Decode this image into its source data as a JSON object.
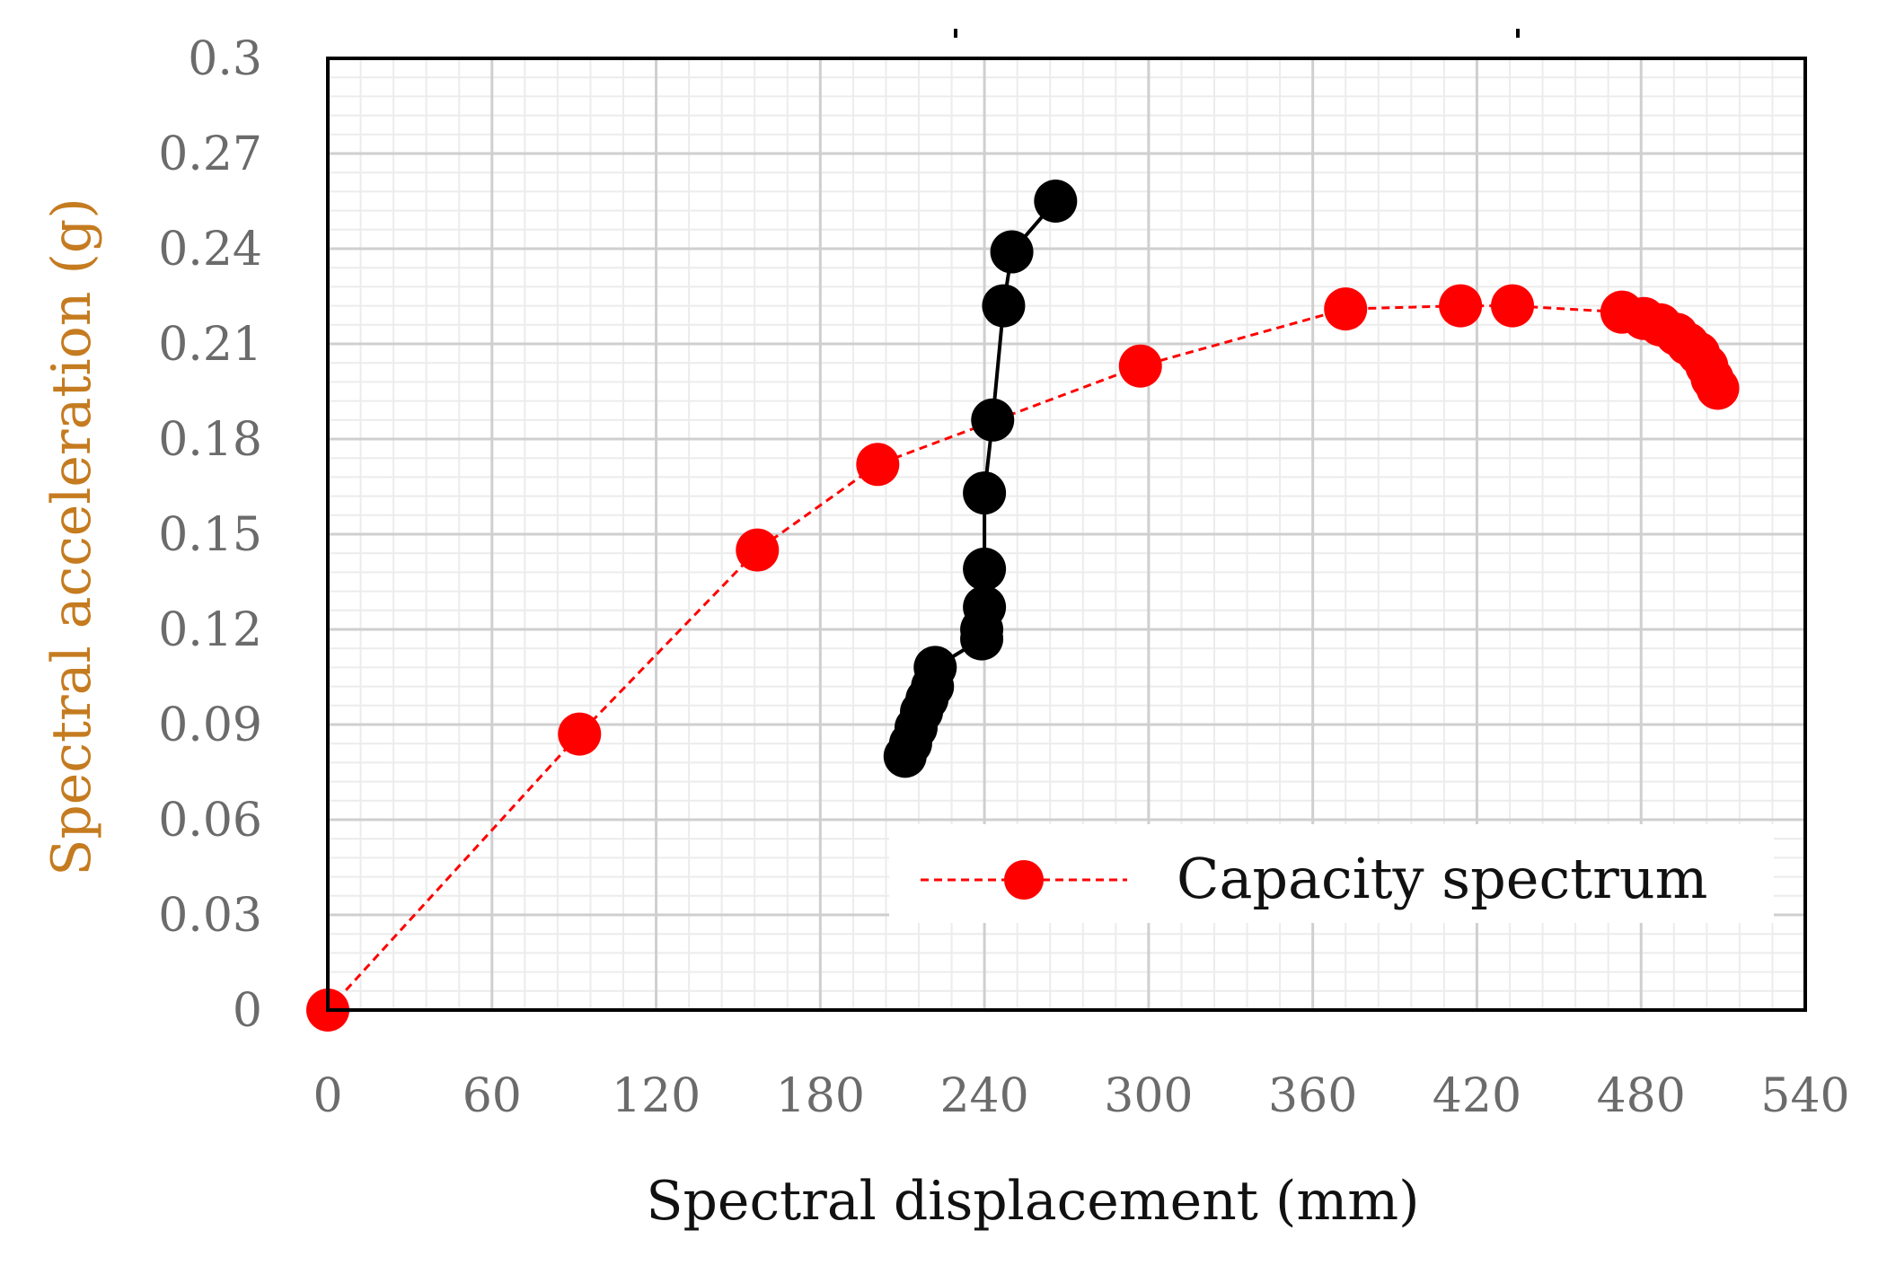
{
  "chart_data": {
    "type": "scatter",
    "xlabel": "Spectral displacement (mm)",
    "ylabel": "Spectral acceleration (g)",
    "xlim": [
      0,
      540
    ],
    "ylim": [
      0,
      0.3
    ],
    "x_ticks": [
      "0",
      "60",
      "120",
      "180",
      "240",
      "300",
      "360",
      "420",
      "480",
      "540"
    ],
    "y_ticks": [
      "0",
      "0.03",
      "0.06",
      "0.09",
      "0.12",
      "0.15",
      "0.18",
      "0.21",
      "0.24",
      "0.27",
      "0.3"
    ],
    "x_tick_values": [
      0,
      60,
      120,
      180,
      240,
      300,
      360,
      420,
      480,
      540
    ],
    "y_tick_values": [
      0,
      0.03,
      0.06,
      0.09,
      0.12,
      0.15,
      0.18,
      0.21,
      0.24,
      0.27,
      0.3
    ],
    "grid": true,
    "legend_position": "bottom-right",
    "series": [
      {
        "name": "Capacity spectrum",
        "color": "#ff0000",
        "line_style": "dashed",
        "marker": "circle",
        "x": [
          0,
          92,
          157,
          201,
          297,
          372,
          414,
          433,
          473,
          481,
          487,
          493,
          497,
          501,
          504,
          506,
          508
        ],
        "y": [
          0.0,
          0.087,
          0.145,
          0.172,
          0.203,
          0.221,
          0.222,
          0.222,
          0.22,
          0.218,
          0.216,
          0.213,
          0.21,
          0.207,
          0.203,
          0.199,
          0.196
        ]
      },
      {
        "color": "#000000",
        "line_style": "solid",
        "marker": "circle",
        "x": [
          266,
          250,
          247,
          243,
          240,
          240,
          240,
          239,
          239,
          222,
          221,
          219,
          217,
          215,
          213,
          211
        ],
        "y": [
          0.255,
          0.239,
          0.222,
          0.186,
          0.163,
          0.139,
          0.127,
          0.12,
          0.117,
          0.108,
          0.102,
          0.098,
          0.094,
          0.089,
          0.084,
          0.08
        ]
      }
    ]
  }
}
